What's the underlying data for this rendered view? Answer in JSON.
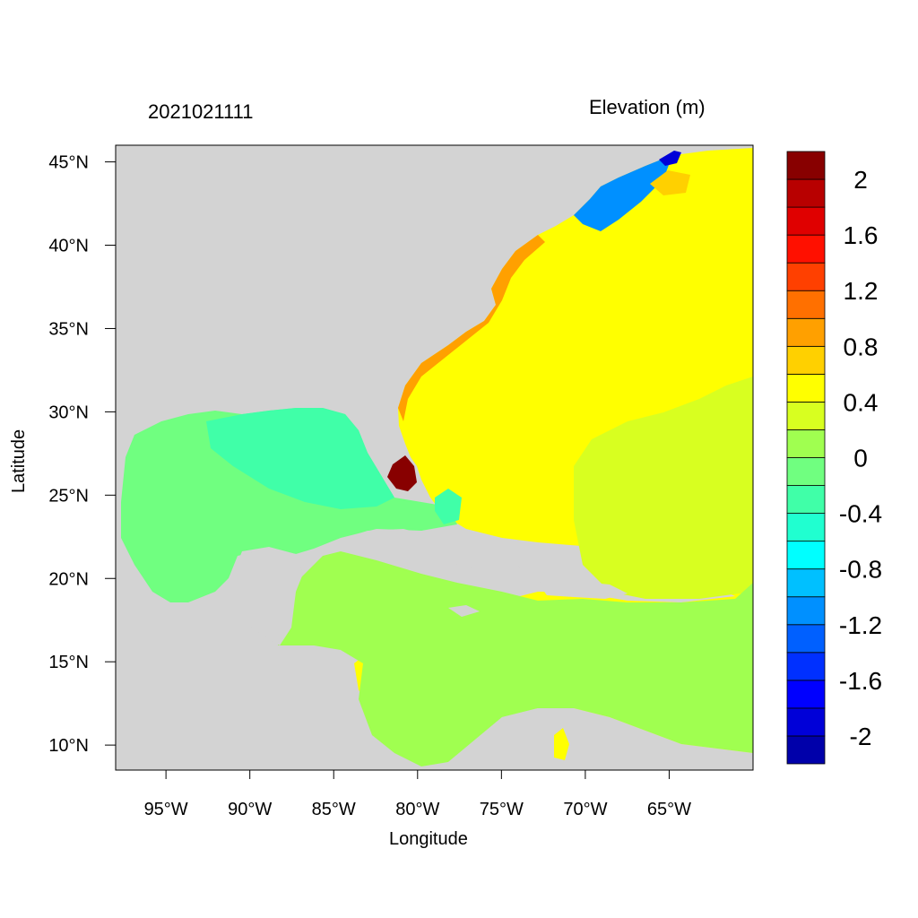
{
  "title_left": "2021021111",
  "title_right": "Elevation (m)",
  "xlabel": "Longitude",
  "ylabel": "Latitude",
  "map": {
    "lon_range": [
      -98,
      -60
    ],
    "lat_range": [
      8.5,
      46
    ],
    "x_ticks": [
      {
        "lon": -95,
        "label": "95°W"
      },
      {
        "lon": -90,
        "label": "90°W"
      },
      {
        "lon": -85,
        "label": "85°W"
      },
      {
        "lon": -80,
        "label": "80°W"
      },
      {
        "lon": -75,
        "label": "75°W"
      },
      {
        "lon": -70,
        "label": "70°W"
      },
      {
        "lon": -65,
        "label": "65°W"
      }
    ],
    "y_ticks": [
      {
        "lat": 45,
        "label": "45°N"
      },
      {
        "lat": 40,
        "label": "40°N"
      },
      {
        "lat": 35,
        "label": "35°N"
      },
      {
        "lat": 30,
        "label": "30°N"
      },
      {
        "lat": 25,
        "label": "25°N"
      },
      {
        "lat": 20,
        "label": "20°N"
      },
      {
        "lat": 15,
        "label": "15°N"
      },
      {
        "lat": 10,
        "label": "10°N"
      }
    ],
    "land_color": "#d3d3d3"
  },
  "colorbar": {
    "colors": [
      "#0000aa",
      "#0000d8",
      "#0000ff",
      "#0030ff",
      "#0060ff",
      "#0090ff",
      "#00c0ff",
      "#00ffff",
      "#20ffd0",
      "#40ffa8",
      "#70ff80",
      "#a0ff50",
      "#d8ff20",
      "#ffff00",
      "#ffd000",
      "#ffa000",
      "#ff7000",
      "#ff4000",
      "#ff1000",
      "#e00000",
      "#b80000",
      "#880000"
    ],
    "labels": [
      {
        "value": 2,
        "text": "2"
      },
      {
        "value": 1.6,
        "text": "1.6"
      },
      {
        "value": 1.2,
        "text": "1.2"
      },
      {
        "value": 0.8,
        "text": "0.8"
      },
      {
        "value": 0.4,
        "text": "0.4"
      },
      {
        "value": 0,
        "text": "0"
      },
      {
        "value": -0.4,
        "text": "-0.4"
      },
      {
        "value": -0.8,
        "text": "-0.8"
      },
      {
        "value": -1.2,
        "text": "-1.2"
      },
      {
        "value": -1.6,
        "text": "-1.6"
      },
      {
        "value": -2,
        "text": "-2"
      }
    ]
  },
  "field_colors": {
    "gulf": "#70ff80",
    "eastern_gulf": "#40ffa8",
    "caribbean": "#a0ff50",
    "atlantic": "#ffff00",
    "southeast_atlantic": "#d8ff20",
    "shelf": "#ffd000",
    "coast_high": "#ffa000",
    "florida_surge": "#880000",
    "gulf_of_maine": "#0090ff",
    "deep_low": "#0000d8",
    "bahamas": "#40ffa8"
  }
}
